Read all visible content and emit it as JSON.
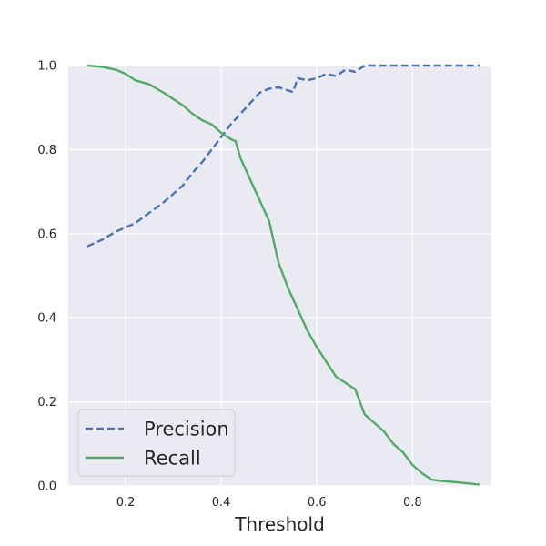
{
  "chart_data": {
    "type": "line",
    "xlabel": "Threshold",
    "ylabel": "",
    "xlim": [
      0.08,
      0.965
    ],
    "ylim": [
      0.0,
      1.0
    ],
    "xticks": [
      "0.2",
      "0.4",
      "0.6",
      "0.8"
    ],
    "yticks": [
      "0.0",
      "0.2",
      "0.4",
      "0.6",
      "0.8",
      "1.0"
    ],
    "grid": true,
    "legend": {
      "placement": "lower-left"
    },
    "colors": {
      "background": "#eaeaf2",
      "grid": "#ffffff",
      "precision": "#4c72b0",
      "recall": "#55a868"
    },
    "series": [
      {
        "name": "Precision",
        "style": "dashed",
        "x": [
          0.12,
          0.15,
          0.18,
          0.2,
          0.22,
          0.25,
          0.28,
          0.3,
          0.32,
          0.34,
          0.36,
          0.38,
          0.4,
          0.42,
          0.44,
          0.46,
          0.48,
          0.5,
          0.52,
          0.55,
          0.56,
          0.58,
          0.6,
          0.62,
          0.64,
          0.66,
          0.68,
          0.7,
          0.72,
          0.8,
          0.94
        ],
        "values": [
          0.57,
          0.585,
          0.605,
          0.615,
          0.625,
          0.65,
          0.675,
          0.695,
          0.715,
          0.745,
          0.77,
          0.8,
          0.83,
          0.86,
          0.885,
          0.91,
          0.935,
          0.945,
          0.948,
          0.937,
          0.97,
          0.965,
          0.97,
          0.98,
          0.975,
          0.99,
          0.985,
          1.0,
          1.0,
          1.0,
          1.0
        ]
      },
      {
        "name": "Recall",
        "style": "solid",
        "x": [
          0.12,
          0.15,
          0.18,
          0.2,
          0.22,
          0.25,
          0.28,
          0.3,
          0.32,
          0.34,
          0.36,
          0.38,
          0.4,
          0.42,
          0.43,
          0.44,
          0.46,
          0.48,
          0.5,
          0.52,
          0.54,
          0.56,
          0.58,
          0.6,
          0.62,
          0.64,
          0.66,
          0.68,
          0.7,
          0.72,
          0.74,
          0.76,
          0.78,
          0.8,
          0.82,
          0.84,
          0.86,
          0.9,
          0.94
        ],
        "values": [
          1.0,
          0.997,
          0.99,
          0.98,
          0.965,
          0.955,
          0.935,
          0.92,
          0.905,
          0.885,
          0.87,
          0.86,
          0.84,
          0.825,
          0.82,
          0.78,
          0.73,
          0.68,
          0.63,
          0.53,
          0.47,
          0.42,
          0.37,
          0.33,
          0.295,
          0.26,
          0.245,
          0.23,
          0.17,
          0.15,
          0.13,
          0.1,
          0.08,
          0.05,
          0.03,
          0.015,
          0.012,
          0.008,
          0.003
        ]
      }
    ]
  }
}
